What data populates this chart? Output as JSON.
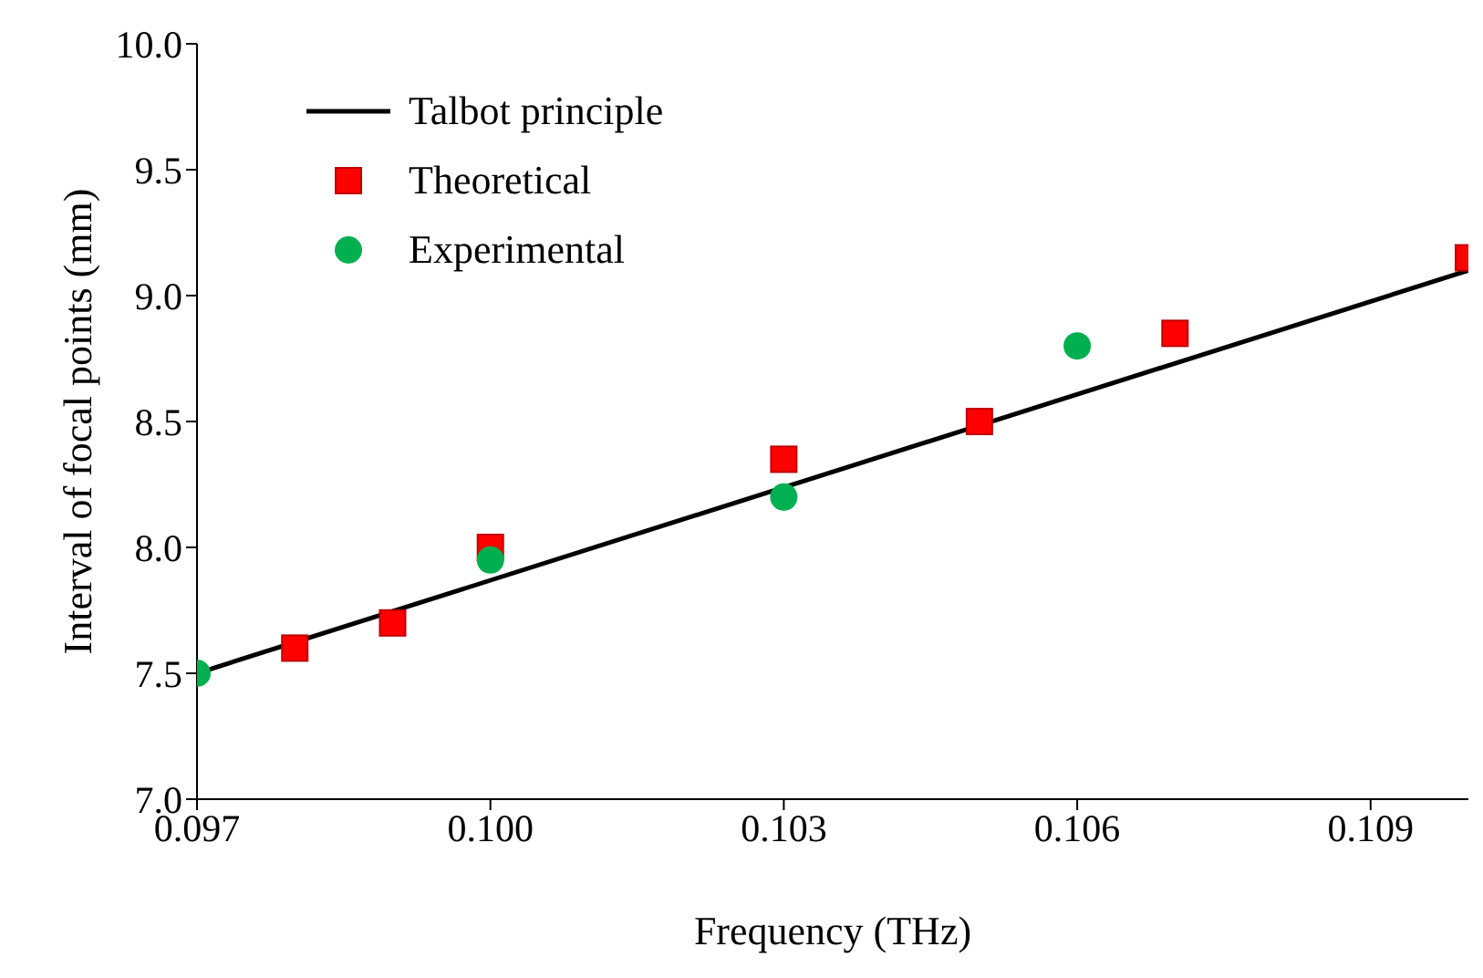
{
  "chart_data": {
    "type": "scatter",
    "xlabel": "Frequency (THz)",
    "ylabel": "Interval of focal points (mm)",
    "xlim": [
      0.097,
      0.11
    ],
    "xticks": [
      {
        "value": 0.097,
        "label": "0.097"
      },
      {
        "value": 0.1,
        "label": "0.100"
      },
      {
        "value": 0.103,
        "label": "0.103"
      },
      {
        "value": 0.106,
        "label": "0.106"
      },
      {
        "value": 0.109,
        "label": "0.109"
      }
    ],
    "ylim": [
      7,
      10
    ],
    "yticks": [
      {
        "value": 7,
        "label": "7.0"
      },
      {
        "value": 7.5,
        "label": "7.5"
      },
      {
        "value": 8,
        "label": "8.0"
      },
      {
        "value": 8.5,
        "label": "8.5"
      },
      {
        "value": 9,
        "label": "9.0"
      },
      {
        "value": 9.5,
        "label": "9.5"
      },
      {
        "value": 10,
        "label": "10.0"
      }
    ],
    "grid": false,
    "legend": "top left",
    "series": [
      {
        "name": "Talbot principle",
        "type": "line",
        "color": "#000000",
        "marker": "none",
        "line_style": "solid",
        "x": [
          0.097,
          0.11
        ],
        "values": [
          7.5,
          9.1
        ]
      },
      {
        "name": "Theoretical",
        "type": "scatter",
        "color": "#ff0000",
        "marker": "square",
        "x": [
          0.098,
          0.099,
          0.1,
          0.103,
          0.105,
          0.107,
          0.11
        ],
        "values": [
          7.6,
          7.7,
          8.0,
          8.35,
          8.5,
          8.85,
          9.15
        ]
      },
      {
        "name": "Experimental",
        "type": "scatter",
        "color": "#00b050",
        "marker": "circle",
        "x": [
          0.097,
          0.1,
          0.103,
          0.106
        ],
        "values": [
          7.5,
          7.95,
          8.2,
          8.8
        ]
      }
    ]
  }
}
